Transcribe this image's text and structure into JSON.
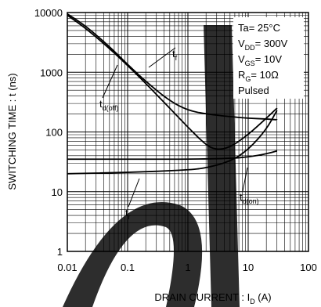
{
  "chart_data": {
    "type": "line",
    "title": "",
    "xlabel": "DRAIN CURRENT : I_D (A)",
    "xlabel_main": "DRAIN CURRENT : I",
    "xlabel_sub": "D",
    "xlabel_unit": " (A)",
    "ylabel": "SWITCHING TIME : t (ns)",
    "xscale": "log",
    "yscale": "log",
    "xlim": [
      0.01,
      100
    ],
    "ylim": [
      1,
      10000
    ],
    "x_ticks": [
      "0.01",
      "0.1",
      "1",
      "10",
      "100"
    ],
    "y_ticks": [
      "1",
      "10",
      "100",
      "1000",
      "10000"
    ],
    "grid": true,
    "conditions": [
      {
        "main": "Ta= 25°C",
        "sub": "",
        "rest": ""
      },
      {
        "main": "V",
        "sub": "DD",
        "rest": "= 300V"
      },
      {
        "main": "V",
        "sub": "GS",
        "rest": "= 10V"
      },
      {
        "main": "R",
        "sub": "G",
        "rest": "= 10Ω"
      },
      {
        "main": "Pulsed",
        "sub": "",
        "rest": ""
      }
    ],
    "series": [
      {
        "label": "t_d(off)",
        "label_main": "t",
        "label_sub": "d(off)",
        "x": [
          0.01,
          0.02,
          0.05,
          0.1,
          0.2,
          0.5,
          1,
          2,
          5,
          10,
          20,
          30
        ],
        "y": [
          9500,
          6000,
          2700,
          1350,
          700,
          330,
          230,
          200,
          180,
          170,
          165,
          160
        ]
      },
      {
        "label": "t_f",
        "label_main": "t",
        "label_sub": "f",
        "x": [
          0.01,
          0.02,
          0.05,
          0.1,
          0.2,
          0.5,
          1,
          2,
          3,
          5,
          10,
          20,
          30
        ],
        "y": [
          9000,
          5500,
          2500,
          1300,
          650,
          250,
          120,
          60,
          50,
          55,
          90,
          170,
          250
        ]
      },
      {
        "label": "t_r",
        "label_main": "t",
        "label_sub": "r",
        "x": [
          0.01,
          0.1,
          1,
          2,
          5,
          10,
          20,
          30
        ],
        "y": [
          20,
          21,
          23,
          25,
          32,
          50,
          110,
          230
        ]
      },
      {
        "label": "t_d(on)",
        "label_main": "t",
        "label_sub": "d(on)",
        "x": [
          0.01,
          0.1,
          1,
          5,
          10,
          20,
          30
        ],
        "y": [
          35,
          35,
          35,
          36,
          38,
          43,
          48
        ]
      }
    ]
  }
}
